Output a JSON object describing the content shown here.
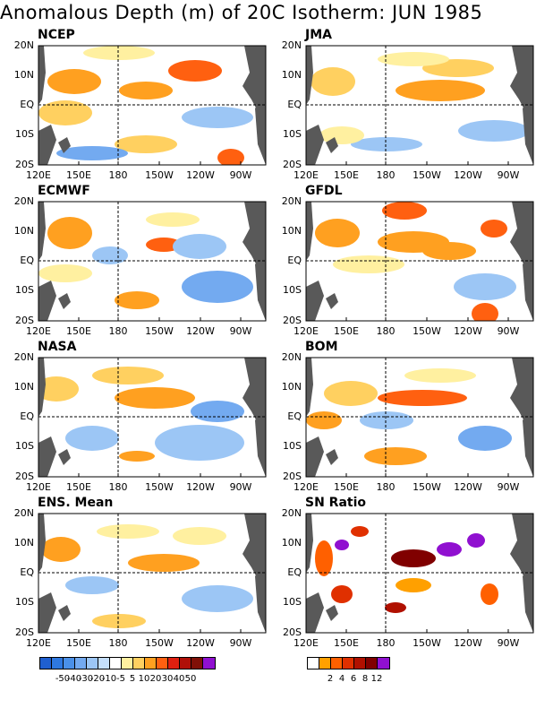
{
  "title": "Anomalous Depth (m) of 20C Isotherm: JUN 1985",
  "lat_labels": [
    "20N",
    "10N",
    "EQ",
    "10S",
    "20S"
  ],
  "lon_labels": [
    "120E",
    "150E",
    "180",
    "150W",
    "120W",
    "90W"
  ],
  "panels": [
    {
      "name": "NCEP",
      "kind": "anomaly"
    },
    {
      "name": "JMA",
      "kind": "anomaly"
    },
    {
      "name": "ECMWF",
      "kind": "anomaly"
    },
    {
      "name": "GFDL",
      "kind": "anomaly"
    },
    {
      "name": "NASA",
      "kind": "anomaly"
    },
    {
      "name": "BOM",
      "kind": "anomaly"
    },
    {
      "name": "ENS. Mean",
      "kind": "anomaly"
    },
    {
      "name": "SN Ratio",
      "kind": "snratio"
    }
  ],
  "anomaly_colorbar": {
    "colors": [
      "#1f5fd0",
      "#2e78e0",
      "#4a90e8",
      "#73aaf0",
      "#9cc6f5",
      "#c4defa",
      "#ffffff",
      "#fff0a0",
      "#ffd060",
      "#ffa020",
      "#ff6010",
      "#e02010",
      "#b01008",
      "#801008",
      "#9010d0"
    ],
    "labels": [
      "-50",
      "-40",
      "-30",
      "-20",
      "-10",
      "-5",
      "5",
      "10",
      "20",
      "30",
      "40",
      "50"
    ]
  },
  "sn_colorbar": {
    "colors": [
      "#ffffff",
      "#ffa000",
      "#ff6000",
      "#e03000",
      "#b01000",
      "#800000",
      "#9010d0"
    ],
    "labels": [
      "2",
      "4",
      "6",
      "8",
      "12"
    ]
  },
  "colors": {
    "land": "#595959",
    "background": "#ffffff"
  }
}
